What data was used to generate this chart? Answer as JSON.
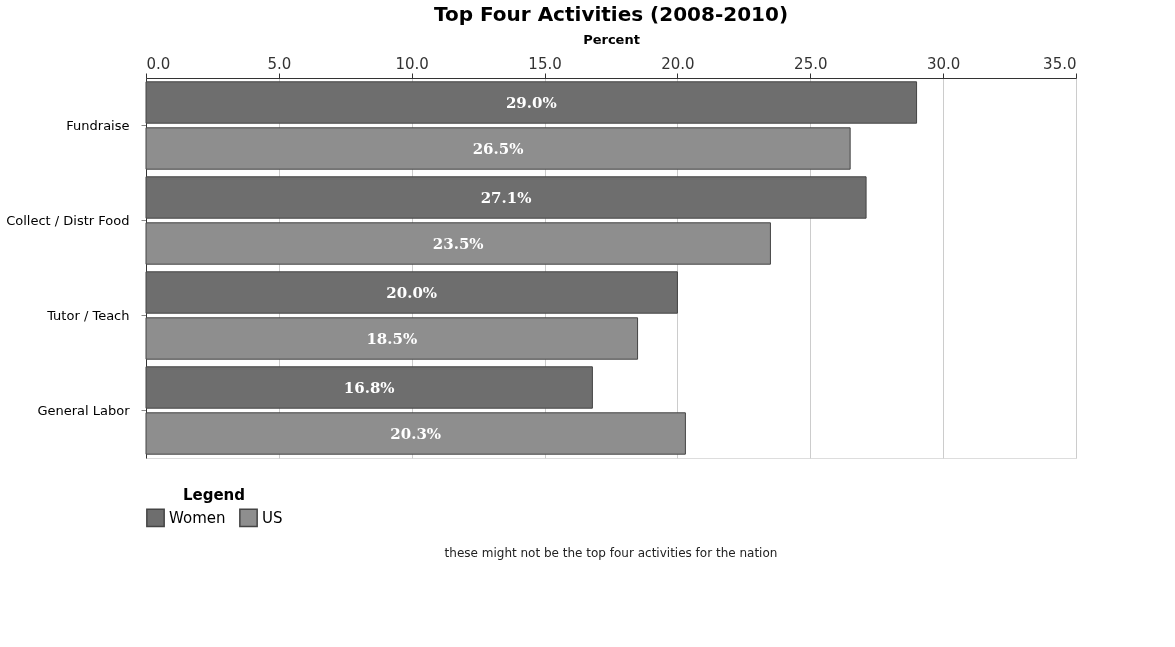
{
  "chart_data": {
    "type": "bar",
    "orientation": "horizontal",
    "title": "Top Four Activities (2008-2010)",
    "xlabel": "Percent",
    "categories": [
      "Fundraise",
      "Collect / Distr Food",
      "Tutor / Teach",
      "General Labor"
    ],
    "series": [
      {
        "name": "Women",
        "color": "#6e6e6e",
        "values": [
          29.0,
          27.1,
          20.0,
          16.8
        ],
        "value_labels": [
          "29.0%",
          "27.1%",
          "20.0%",
          "16.8%"
        ]
      },
      {
        "name": "US",
        "color": "#8e8e8e",
        "values": [
          26.5,
          23.5,
          18.5,
          20.3
        ],
        "value_labels": [
          "26.5%",
          "23.5%",
          "18.5%",
          "20.3%"
        ]
      }
    ],
    "xlim": [
      0,
      35
    ],
    "xticks": [
      {
        "value": 0,
        "label": "0.0"
      },
      {
        "value": 5,
        "label": "5.0"
      },
      {
        "value": 10,
        "label": "10.0"
      },
      {
        "value": 15,
        "label": "15.0"
      },
      {
        "value": 20,
        "label": "20.0"
      },
      {
        "value": 25,
        "label": "25.0"
      },
      {
        "value": 30,
        "label": "30.0"
      },
      {
        "value": 35,
        "label": "35.0"
      }
    ],
    "grid": "x",
    "legend": "bottom",
    "legend_title": "Legend",
    "annotations": [
      "these might not be the top four activities for the nation"
    ]
  }
}
